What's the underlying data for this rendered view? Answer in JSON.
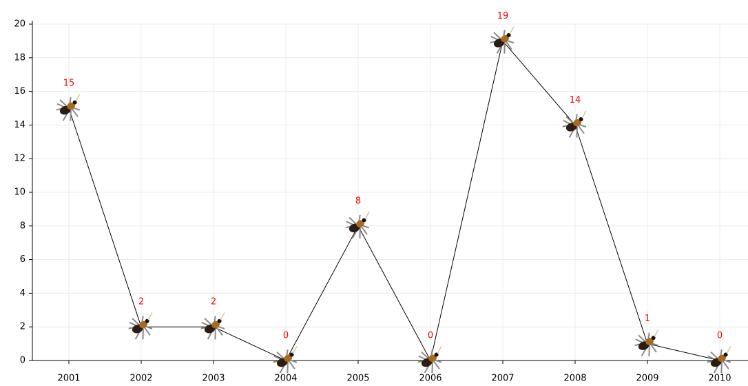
{
  "chart_data": {
    "type": "line",
    "categories": [
      "2001",
      "2002",
      "2003",
      "2004",
      "2005",
      "2006",
      "2007",
      "2008",
      "2009",
      "2010"
    ],
    "values": [
      15,
      2,
      2,
      0,
      8,
      0,
      19,
      14,
      1,
      0
    ],
    "color": "#000000",
    "label_color": "#ff0000",
    "ylim": [
      0,
      20
    ],
    "yticks": [
      0,
      2,
      4,
      6,
      8,
      10,
      12,
      14,
      16,
      18,
      20
    ],
    "grid": true
  }
}
